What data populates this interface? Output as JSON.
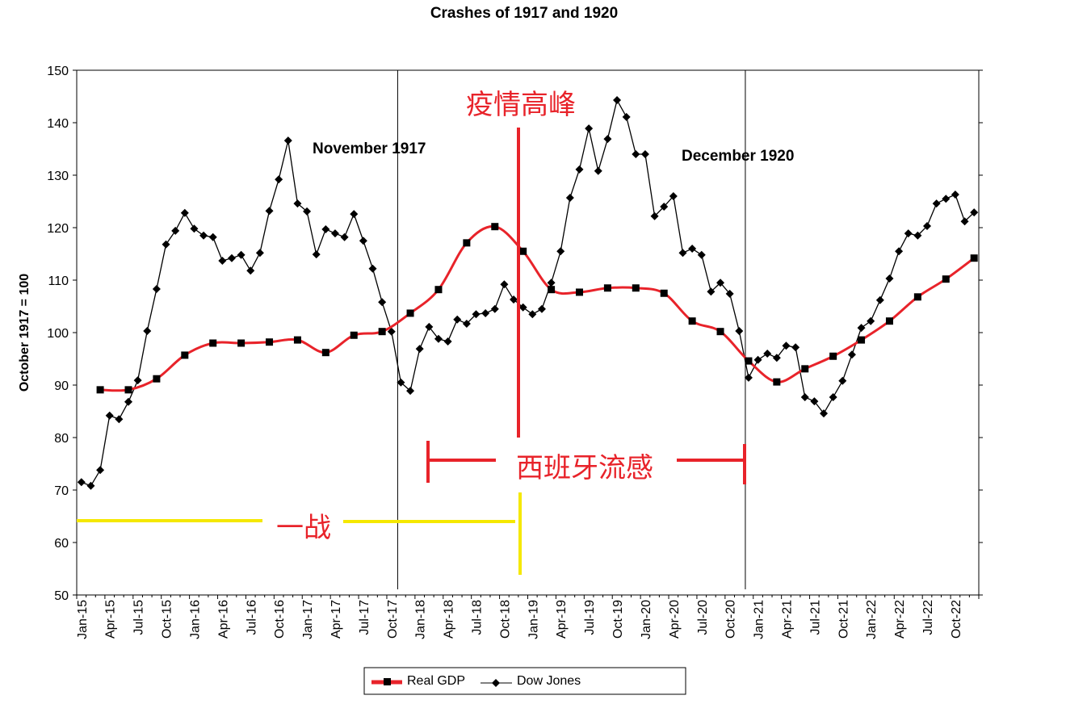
{
  "chart_data": {
    "type": "line",
    "title": "Crashes of 1917 and 1920",
    "xlabel": "",
    "ylabel": "October 1917 = 100",
    "ylim": [
      50,
      150
    ],
    "yticks": [
      50,
      60,
      70,
      80,
      90,
      100,
      110,
      120,
      130,
      140,
      150
    ],
    "grid": false,
    "legend_placement": "bottom-center",
    "x_months_start": "Jan-15",
    "x_tick_labels": [
      "Jan-15",
      "Apr-15",
      "Jul-15",
      "Oct-15",
      "Jan-16",
      "Apr-16",
      "Jul-16",
      "Oct-16",
      "Jan-17",
      "Apr-17",
      "Jul-17",
      "Oct-17",
      "Jan-18",
      "Apr-18",
      "Jul-18",
      "Oct-18",
      "Jan-19",
      "Apr-19",
      "Jul-19",
      "Oct-19",
      "Jan-20",
      "Apr-20",
      "Jul-20",
      "Oct-20",
      "Jan-21",
      "Apr-21",
      "Jul-21",
      "Oct-21",
      "Jan-22",
      "Apr-22",
      "Jul-22",
      "Oct-22"
    ],
    "series": [
      {
        "name": "Real GDP",
        "color": "#e8232a",
        "frequency": "quarterly",
        "month_index": [
          2,
          5,
          8,
          11,
          14,
          17,
          20,
          23,
          26,
          29,
          32,
          35,
          38,
          41,
          44,
          47,
          50,
          53,
          56,
          59,
          62,
          65,
          68,
          71,
          74,
          77,
          80,
          83,
          86,
          89,
          92,
          95
        ],
        "values": [
          89.1,
          89.1,
          91.2,
          95.7,
          98.0,
          98.0,
          98.2,
          98.6,
          96.2,
          99.5,
          100.2,
          103.7,
          108.2,
          117.1,
          120.2,
          115.5,
          108.2,
          107.7,
          108.5,
          108.5,
          107.5,
          102.2,
          100.2,
          94.6,
          90.6,
          93.1,
          95.5,
          98.6,
          102.2,
          106.8,
          110.2,
          114.2
        ]
      },
      {
        "name": "Dow Jones",
        "color": "#000000",
        "frequency": "monthly",
        "values": [
          71.5,
          70.8,
          73.8,
          84.2,
          83.5,
          86.8,
          90.9,
          100.3,
          108.3,
          116.8,
          119.4,
          122.8,
          119.8,
          118.5,
          118.2,
          113.7,
          114.2,
          114.8,
          111.8,
          115.2,
          123.2,
          129.2,
          136.6,
          124.6,
          123.1,
          114.9,
          119.7,
          118.9,
          118.2,
          122.6,
          117.5,
          112.2,
          105.8,
          100.2,
          90.5,
          88.9,
          96.9,
          101.1,
          98.8,
          98.3,
          102.5,
          101.7,
          103.5,
          103.7,
          104.5,
          109.2,
          106.3,
          104.8,
          103.5,
          104.5,
          109.5,
          115.5,
          125.7,
          131.1,
          138.9,
          130.8,
          136.9,
          144.3,
          141.1,
          134.0,
          134.0,
          122.2,
          124.0,
          126.0,
          115.2,
          116.0,
          114.8,
          107.8,
          109.5,
          107.4,
          100.3,
          91.4,
          94.8,
          96.0,
          95.2,
          97.5,
          97.2,
          87.7,
          86.9,
          84.6,
          87.7,
          90.8,
          95.8,
          100.9,
          102.2,
          106.2,
          110.3,
          115.5,
          118.9,
          118.5,
          120.3,
          124.6,
          125.5,
          126.3,
          121.2,
          122.9
        ]
      }
    ],
    "annotations": {
      "crash1": {
        "label": "November 1917",
        "month_index": 34
      },
      "crash2": {
        "label": "December 1920",
        "month_index": 71
      },
      "peak": {
        "label": "疫情高峰",
        "month_index": 46.5,
        "color": "#e8232a"
      },
      "flu": {
        "label": "西班牙流感",
        "from_month": 37,
        "to_month": 71,
        "color": "#e8232a"
      },
      "ww1": {
        "label": "一战",
        "from_month": 0,
        "to_month": 46.5,
        "color": "#f5e800"
      }
    }
  }
}
